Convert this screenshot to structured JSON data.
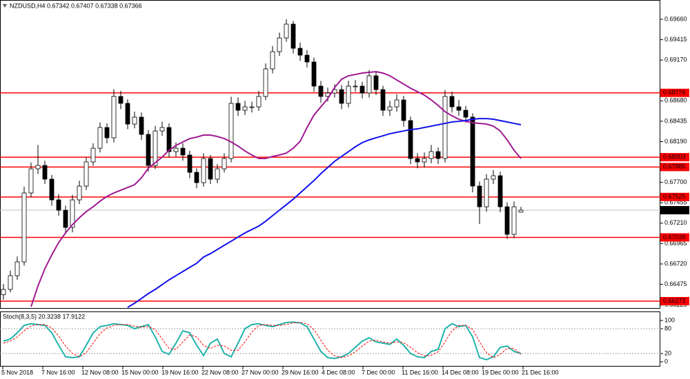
{
  "chart_data": [
    {
      "type": "candlestick",
      "title": "NZDUSD,H4  0.67342 0.67407 0.67338 0.67366",
      "x_labels": [
        "5 Nov 2018",
        "7 Nov 16:00",
        "12 Nov 08:00",
        "15 Nov 00:00",
        "19 Nov 16:00",
        "22 Nov 08:00",
        "27 Nov 00:00",
        "29 Nov 16:00",
        "4 Dec 08:00",
        "7 Dec 00:00",
        "11 Dec 16:00",
        "14 Dec 08:00",
        "19 Dec 00:00",
        "21 Dec 16:00"
      ],
      "open": [
        0.6635,
        0.66414,
        0.66579,
        0.66745,
        0.67573,
        0.67863,
        0.67904,
        0.67739,
        0.6749,
        0.67366,
        0.67159,
        0.6749,
        0.67656,
        0.67946,
        0.68111,
        0.6836,
        0.68236,
        0.68733,
        0.6865,
        0.68401,
        0.68484,
        0.68277,
        0.67904,
        0.68318,
        0.6836,
        0.6807,
        0.68111,
        0.68029,
        0.67821,
        0.67697,
        0.67987,
        0.67739,
        0.67863,
        0.67987,
        0.6865,
        0.68567,
        0.68608,
        0.68608,
        0.68733,
        0.69064,
        0.69271,
        0.69436,
        0.69602,
        0.69312,
        0.69229,
        0.69147,
        0.68857,
        0.68733,
        0.68774,
        0.68815,
        0.6865,
        0.68857,
        0.68857,
        0.68774,
        0.68981,
        0.68815,
        0.68567,
        0.68608,
        0.68691,
        0.68443,
        0.67987,
        0.67946,
        0.67987,
        0.6807,
        0.67987,
        0.68733,
        0.68608,
        0.68567,
        0.68484,
        0.67656,
        0.67407,
        0.67739,
        0.6778,
        0.67407,
        0.67076,
        0.67342
      ],
      "high": [
        0.6648,
        0.6664,
        0.6681,
        0.6765,
        0.6794,
        0.6815,
        0.6796,
        0.6779,
        0.6756,
        0.6742,
        0.6755,
        0.6772,
        0.68,
        0.6817,
        0.6842,
        0.6841,
        0.6882,
        0.688,
        0.687,
        0.6855,
        0.6854,
        0.6833,
        0.6838,
        0.6843,
        0.6841,
        0.6818,
        0.6817,
        0.6808,
        0.6787,
        0.6805,
        0.6803,
        0.6792,
        0.6805,
        0.6873,
        0.6872,
        0.6868,
        0.6867,
        0.688,
        0.6913,
        0.6934,
        0.695,
        0.6966,
        0.6964,
        0.6938,
        0.6929,
        0.692,
        0.6892,
        0.6884,
        0.6888,
        0.6887,
        0.6892,
        0.6893,
        0.6891,
        0.6905,
        0.6903,
        0.6886,
        0.6868,
        0.6876,
        0.6874,
        0.6849,
        0.6805,
        0.6806,
        0.6815,
        0.6812,
        0.6881,
        0.6879,
        0.6869,
        0.6862,
        0.6853,
        0.6771,
        0.678,
        0.6785,
        0.6783,
        0.6746,
        0.6747,
        0.67407
      ],
      "low": [
        0.6629,
        0.6638,
        0.6653,
        0.667,
        0.6752,
        0.678,
        0.6768,
        0.6742,
        0.673,
        0.6708,
        0.671,
        0.6744,
        0.6761,
        0.679,
        0.6806,
        0.6817,
        0.6818,
        0.6858,
        0.6834,
        0.6835,
        0.6821,
        0.6783,
        0.6786,
        0.6826,
        0.68,
        0.6801,
        0.6796,
        0.6775,
        0.6763,
        0.6765,
        0.6768,
        0.6769,
        0.6782,
        0.6794,
        0.685,
        0.6851,
        0.6854,
        0.6856,
        0.6869,
        0.6901,
        0.6922,
        0.6939,
        0.6925,
        0.6916,
        0.6908,
        0.6879,
        0.6866,
        0.6867,
        0.6872,
        0.6858,
        0.686,
        0.6879,
        0.6871,
        0.6872,
        0.6875,
        0.685,
        0.685,
        0.6855,
        0.6837,
        0.6792,
        0.6787,
        0.6788,
        0.6793,
        0.6792,
        0.6794,
        0.6854,
        0.685,
        0.6842,
        0.6758,
        0.672,
        0.6735,
        0.6768,
        0.6734,
        0.6702,
        0.6703,
        0.67338
      ],
      "close": [
        0.66414,
        0.66579,
        0.66745,
        0.67573,
        0.67863,
        0.67904,
        0.67739,
        0.6749,
        0.67366,
        0.67159,
        0.6749,
        0.67656,
        0.67946,
        0.68111,
        0.6836,
        0.68236,
        0.68733,
        0.6865,
        0.68401,
        0.68484,
        0.68277,
        0.67904,
        0.68318,
        0.6836,
        0.6807,
        0.68111,
        0.68029,
        0.67821,
        0.67697,
        0.67987,
        0.67739,
        0.67863,
        0.67987,
        0.6865,
        0.68567,
        0.68608,
        0.68608,
        0.68733,
        0.69064,
        0.69271,
        0.69436,
        0.69602,
        0.69312,
        0.69229,
        0.69147,
        0.68857,
        0.68733,
        0.68774,
        0.68815,
        0.6865,
        0.68857,
        0.68857,
        0.68774,
        0.68981,
        0.68815,
        0.68567,
        0.68608,
        0.68691,
        0.68443,
        0.67987,
        0.67946,
        0.67987,
        0.6807,
        0.67987,
        0.68733,
        0.68608,
        0.68567,
        0.68484,
        0.67656,
        0.67407,
        0.67739,
        0.6778,
        0.67407,
        0.67076,
        0.67407,
        0.67366
      ],
      "moving_averages": [
        {
          "color": "#a01890",
          "values": [
            null,
            null,
            null,
            null,
            0.66206,
            0.66455,
            0.66662,
            0.66828,
            0.66977,
            0.67093,
            0.67192,
            0.67275,
            0.67349,
            0.67407,
            0.67474,
            0.67532,
            0.67573,
            0.67606,
            0.67639,
            0.67672,
            0.67755,
            0.67871,
            0.67937,
            0.68004,
            0.68086,
            0.68144,
            0.68186,
            0.68227,
            0.68244,
            0.68269,
            0.68269,
            0.68252,
            0.68227,
            0.68186,
            0.68136,
            0.68078,
            0.68029,
            0.67987,
            0.67987,
            0.68012,
            0.68029,
            0.68053,
            0.68111,
            0.68194,
            0.6836,
            0.68509,
            0.68608,
            0.68708,
            0.6884,
            0.6894,
            0.68981,
            0.68997,
            0.69014,
            0.69022,
            0.69031,
            0.69014,
            0.68981,
            0.68931,
            0.68882,
            0.68832,
            0.6879,
            0.68749,
            0.68691,
            0.68625,
            0.6855,
            0.68501,
            0.68459,
            0.68434,
            0.68418,
            0.68409,
            0.68401,
            0.68376,
            0.68318,
            0.68211,
            0.68086,
            0.67987
          ]
        },
        {
          "color": "#1010ee",
          "values": [
            null,
            null,
            null,
            null,
            null,
            null,
            null,
            null,
            null,
            null,
            null,
            null,
            null,
            null,
            null,
            null,
            null,
            null,
            0.66198,
            0.66248,
            0.66306,
            0.66364,
            0.66414,
            0.66471,
            0.66529,
            0.66579,
            0.66629,
            0.66679,
            0.66728,
            0.66803,
            0.66844,
            0.66894,
            0.66944,
            0.66993,
            0.67043,
            0.67093,
            0.67134,
            0.67175,
            0.67233,
            0.673,
            0.67366,
            0.67432,
            0.67498,
            0.67573,
            0.67648,
            0.67722,
            0.67805,
            0.67879,
            0.67954,
            0.68012,
            0.6807,
            0.68128,
            0.68178,
            0.68211,
            0.68236,
            0.6826,
            0.68285,
            0.68302,
            0.68318,
            0.68335,
            0.68343,
            0.6836,
            0.68376,
            0.68393,
            0.68409,
            0.68426,
            0.68434,
            0.68443,
            0.68459,
            0.68467,
            0.68467,
            0.68459,
            0.68443,
            0.68426,
            0.68409,
            0.68393
          ]
        }
      ],
      "up_color": "#ffffff",
      "down_color": "#000000",
      "ylim": [
        0.66182,
        0.69892
      ],
      "yticks": [
        {
          "value": 0.6966,
          "label": "0.69660"
        },
        0.69415,
        {
          "value": 0.6917,
          "label": "0.69170"
        },
        {
          "value": 0.6868,
          "label": "0.68680"
        },
        0.68435,
        {
          "value": 0.6819,
          "label": "0.68190"
        },
        {
          "value": 0.677,
          "label": "0.67700"
        },
        0.67455,
        {
          "value": 0.6721,
          "label": "0.67210"
        },
        0.66965,
        {
          "value": 0.6672,
          "label": "0.66720"
        },
        0.66475,
        0.66225
      ],
      "levels": [
        0.68776,
        0.68003,
        0.67885,
        0.67525,
        0.67039,
        0.66273
      ],
      "level_color": "#ff0000",
      "last_price": 0.67366
    },
    {
      "type": "line",
      "title": "Stoch(8,3,5) 20.3238 17.9122",
      "series": [
        {
          "color": "#20b2aa",
          "values": [
            50,
            55,
            70,
            88,
            92,
            90,
            88,
            70,
            40,
            12,
            10,
            12,
            40,
            70,
            85,
            88,
            92,
            90,
            88,
            80,
            85,
            90,
            60,
            25,
            18,
            45,
            75,
            70,
            40,
            15,
            45,
            55,
            20,
            12,
            45,
            80,
            90,
            92,
            88,
            85,
            90,
            95,
            96,
            94,
            85,
            55,
            25,
            10,
            8,
            12,
            20,
            35,
            50,
            58,
            48,
            45,
            42,
            55,
            40,
            20,
            12,
            10,
            25,
            30,
            80,
            92,
            85,
            88,
            60,
            10,
            5,
            12,
            35,
            38,
            25,
            20.3238
          ]
        },
        {
          "color": "#ff0000",
          "dashed": true,
          "values": [
            45,
            50,
            60,
            75,
            87,
            90,
            90,
            82,
            62,
            38,
            20,
            12,
            22,
            45,
            68,
            82,
            88,
            90,
            90,
            86,
            84,
            85,
            78,
            55,
            32,
            30,
            48,
            65,
            60,
            40,
            32,
            40,
            38,
            28,
            28,
            48,
            72,
            88,
            90,
            88,
            88,
            90,
            94,
            95,
            92,
            78,
            52,
            28,
            14,
            10,
            14,
            24,
            38,
            50,
            52,
            48,
            45,
            48,
            46,
            35,
            22,
            14,
            16,
            24,
            48,
            75,
            88,
            88,
            78,
            48,
            22,
            10,
            18,
            32,
            32,
            17.9122
          ]
        }
      ],
      "ylim": [
        -11.7,
        121.7
      ],
      "yticks": [
        100,
        80,
        20,
        0
      ],
      "levels": [
        80,
        20
      ]
    }
  ]
}
